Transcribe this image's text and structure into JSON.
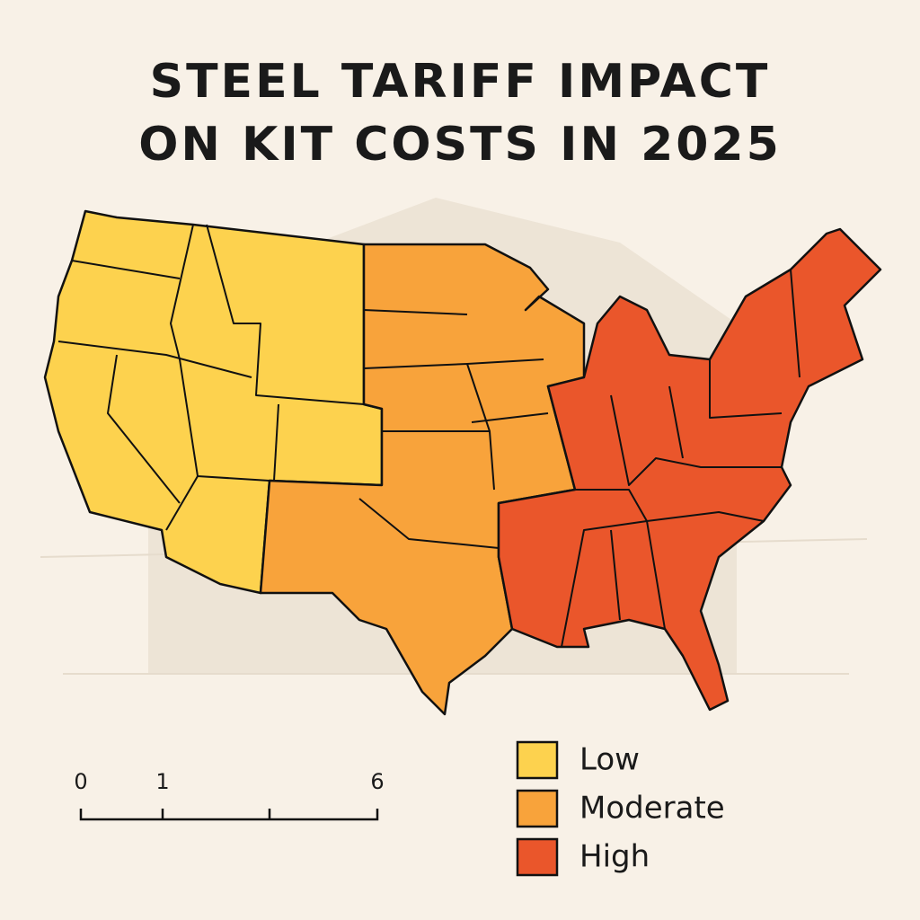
{
  "title": "STEEL TARIFF IMPACT ON KIT COSTS IN 2025",
  "legend": [
    {
      "label": "Low",
      "color": "#fdd24e"
    },
    {
      "label": "Moderate",
      "color": "#f8a33b"
    },
    {
      "label": "High",
      "color": "#ea562b"
    }
  ],
  "scale_bar": {
    "labels": [
      "0",
      "1",
      "6"
    ]
  }
}
